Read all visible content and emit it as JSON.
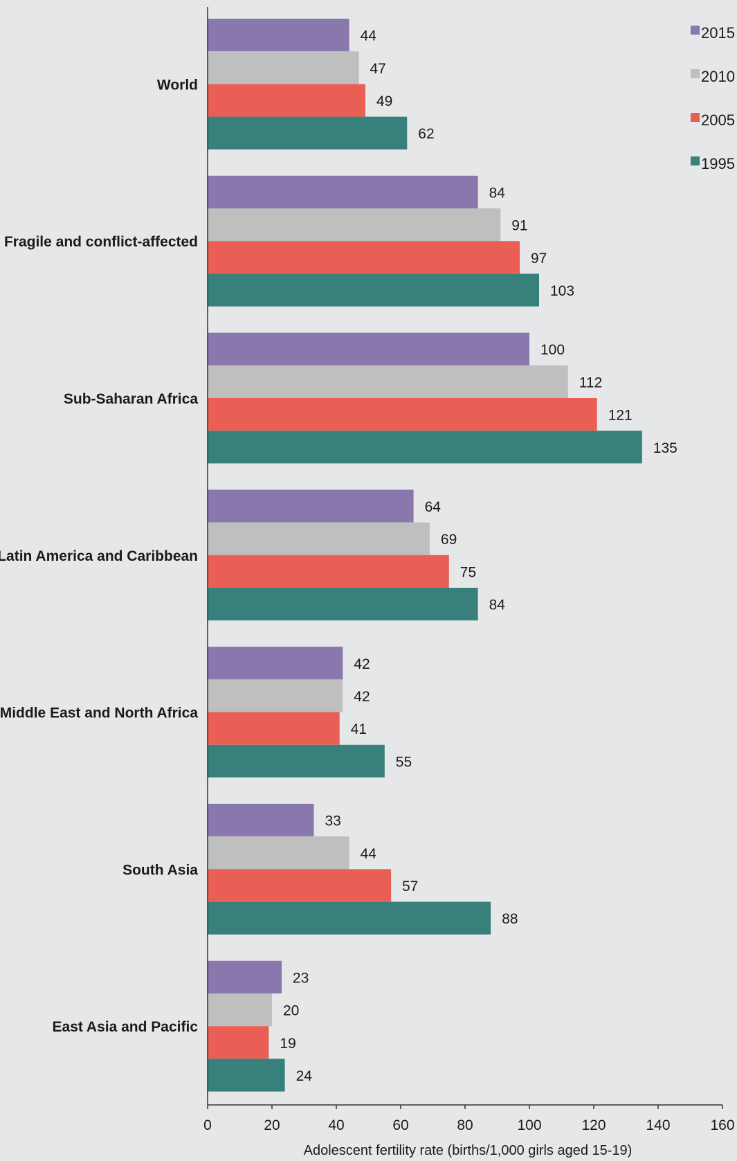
{
  "chart_data": {
    "type": "bar",
    "orientation": "horizontal",
    "title": "",
    "xlabel": "Adolescent fertility  rate (births/1,000 girls aged 15-19)",
    "ylabel": "",
    "xlim": [
      0,
      160
    ],
    "xticks": [
      0,
      20,
      40,
      60,
      80,
      100,
      120,
      140,
      160
    ],
    "grid": false,
    "legend_position": "top-right",
    "categories": [
      "World",
      "Fragile and conflict-affected",
      "Sub-Saharan Africa",
      "Latin America and Caribbean",
      "Middle East and North Africa",
      "South Asia",
      "East Asia and Pacific"
    ],
    "series": [
      {
        "name": "2015",
        "color": "#8878ae",
        "values": [
          44,
          84,
          100,
          64,
          42,
          33,
          23
        ]
      },
      {
        "name": "2010",
        "color": "#bfbfbf",
        "values": [
          47,
          91,
          112,
          69,
          42,
          44,
          20
        ]
      },
      {
        "name": "2005",
        "color": "#e95f55",
        "values": [
          49,
          97,
          121,
          75,
          41,
          57,
          19
        ]
      },
      {
        "name": "1995",
        "color": "#37807b",
        "values": [
          62,
          103,
          135,
          84,
          55,
          88,
          24
        ]
      }
    ]
  }
}
